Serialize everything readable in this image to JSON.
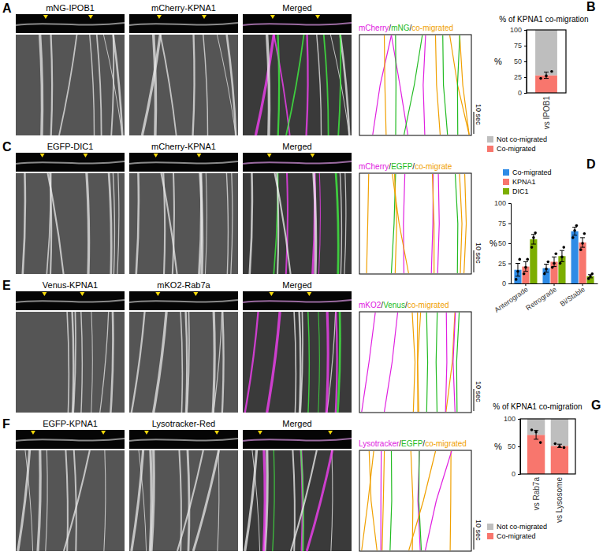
{
  "figure": {
    "panels": [
      {
        "panel": "A",
        "channels": [
          "mNG-IPOB1",
          "mCherry-KPNA1",
          "Merged"
        ],
        "trace_legend": {
          "parts": [
            "mCherry",
            "/",
            "mNG",
            "/",
            "co-migrated"
          ],
          "colors": [
            "#e020e0",
            "#222222",
            "#22bb22",
            "#222222",
            "#f0a000"
          ]
        },
        "time_label": "10 sec"
      },
      {
        "panel": "C",
        "channels": [
          "EGFP-DIC1",
          "mCherry-KPNA1",
          "Merged"
        ],
        "trace_legend": {
          "parts": [
            "mCherry",
            "/",
            "EGFP",
            "/",
            "co-migrate"
          ],
          "colors": [
            "#e020e0",
            "#222222",
            "#22bb22",
            "#222222",
            "#f0a000"
          ]
        },
        "time_label": "10 sec"
      },
      {
        "panel": "E",
        "channels": [
          "Venus-KPNA1",
          "mKO2-Rab7a",
          "Merged"
        ],
        "trace_legend": {
          "parts": [
            "mKO2",
            "/",
            "Venus",
            "/",
            "co-migrated"
          ],
          "colors": [
            "#e020e0",
            "#222222",
            "#22bb22",
            "#222222",
            "#f0a000"
          ]
        },
        "time_label": "10 sec"
      },
      {
        "panel": "F",
        "channels": [
          "EGFP-KPNA1",
          "Lysotracker-Red",
          "Merged"
        ],
        "trace_legend": {
          "parts": [
            "Lysotracker",
            "/",
            "EGFP",
            "/",
            "co-migrated"
          ],
          "colors": [
            "#e020e0",
            "#222222",
            "#22bb22",
            "#222222",
            "#f0a000"
          ]
        },
        "time_label": "10 sec"
      }
    ]
  },
  "chart_data": [
    {
      "type": "bar",
      "panel": "B",
      "title": "% of KPNA1 co-migration",
      "stacked": true,
      "categories": [
        "vs IPOB1"
      ],
      "series": [
        {
          "name": "Co-migrated",
          "color": "#F8766D",
          "values": [
            28
          ],
          "error": [
            5
          ],
          "points": [
            [
              23,
              27,
              34
            ]
          ]
        },
        {
          "name": "Not co-migrated",
          "color": "#BEBEBE",
          "values": [
            72
          ]
        }
      ],
      "ylabel": "%",
      "ylim": [
        0,
        100
      ],
      "yticks": [
        0,
        25,
        50,
        75,
        100
      ],
      "legend": "bottom"
    },
    {
      "type": "bar",
      "panel": "D",
      "stacked": false,
      "categories": [
        "Anterograde",
        "Retrograde",
        "Bi/Stable"
      ],
      "series": [
        {
          "name": "Co-migrated",
          "color": "#2E8BE6",
          "values": [
            17,
            19,
            65
          ],
          "error": [
            8,
            5,
            5
          ],
          "points": [
            [
              5,
              15,
              30
            ],
            [
              12,
              18,
              27
            ],
            [
              57,
              66,
              72
            ]
          ]
        },
        {
          "name": "KPNA1",
          "color": "#F8766D",
          "values": [
            21,
            27,
            51
          ],
          "error": [
            6,
            6,
            6
          ],
          "points": [
            [
              12,
              20,
              30
            ],
            [
              20,
              25,
              37
            ],
            [
              42,
              50,
              62
            ]
          ]
        },
        {
          "name": "DIC1",
          "color": "#7CAE00",
          "values": [
            55,
            34,
            9
          ],
          "error": [
            6,
            7,
            2
          ],
          "points": [
            [
              45,
              57,
              63
            ],
            [
              25,
              33,
              45
            ],
            [
              6,
              9,
              12
            ]
          ]
        }
      ],
      "ylabel": "%",
      "ylim": [
        0,
        100
      ],
      "yticks": [
        0,
        25,
        50,
        75,
        100
      ],
      "legend": "top-left"
    },
    {
      "type": "bar",
      "panel": "G",
      "title": "% of KPNA1 co-migration",
      "stacked": true,
      "categories": [
        "vs Rab7a",
        "vs Lysosome"
      ],
      "series": [
        {
          "name": "Co-migrated",
          "color": "#F8766D",
          "values": [
            71,
            51
          ],
          "error": [
            8,
            3
          ],
          "points": [
            [
              80,
              76,
              57
            ],
            [
              55,
              50,
              48
            ]
          ]
        },
        {
          "name": "Not co-migrated",
          "color": "#BEBEBE",
          "values": [
            29,
            49
          ]
        }
      ],
      "ylabel": "%",
      "ylim": [
        0,
        100
      ],
      "yticks": [
        0,
        50,
        100
      ],
      "legend": "bottom"
    }
  ]
}
